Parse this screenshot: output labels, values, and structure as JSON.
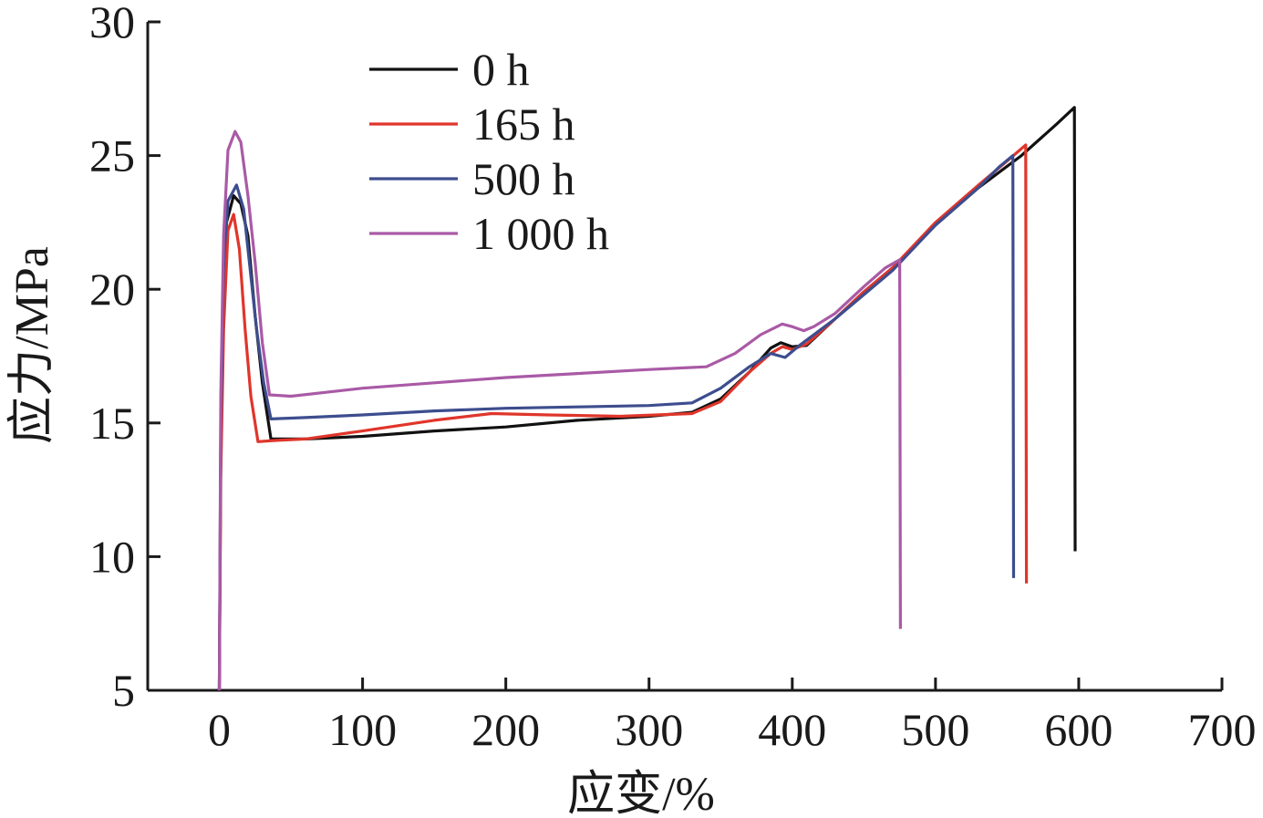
{
  "chart_data": {
    "type": "line",
    "title": "",
    "xlabel": "应变/%",
    "ylabel": "应力/MPa",
    "xlim": [
      -50,
      700
    ],
    "ylim": [
      5,
      30
    ],
    "x_ticks": [
      "0",
      "100",
      "200",
      "300",
      "400",
      "500",
      "600",
      "700"
    ],
    "y_ticks": [
      "5",
      "10",
      "15",
      "20",
      "25",
      "30"
    ],
    "grid": false,
    "legend_position": "top-left",
    "series": [
      {
        "name": "0 h",
        "color": "#111111",
        "points": [
          [
            0,
            5
          ],
          [
            1,
            14
          ],
          [
            3,
            20
          ],
          [
            5,
            22.5
          ],
          [
            10,
            23.5
          ],
          [
            15,
            23.2
          ],
          [
            20,
            22
          ],
          [
            25,
            19
          ],
          [
            30,
            16.5
          ],
          [
            36,
            14.4
          ],
          [
            60,
            14.4
          ],
          [
            100,
            14.5
          ],
          [
            150,
            14.7
          ],
          [
            200,
            14.85
          ],
          [
            250,
            15.1
          ],
          [
            300,
            15.25
          ],
          [
            330,
            15.4
          ],
          [
            350,
            15.9
          ],
          [
            370,
            16.9
          ],
          [
            385,
            17.8
          ],
          [
            392,
            18.0
          ],
          [
            400,
            17.85
          ],
          [
            410,
            17.9
          ],
          [
            430,
            18.9
          ],
          [
            450,
            19.9
          ],
          [
            470,
            20.8
          ],
          [
            500,
            22.4
          ],
          [
            530,
            23.8
          ],
          [
            560,
            25.0
          ],
          [
            585,
            26.2
          ],
          [
            597,
            26.8
          ],
          [
            597.5,
            10.2
          ]
        ]
      },
      {
        "name": "165 h",
        "color": "#e0352b",
        "points": [
          [
            0,
            5
          ],
          [
            1,
            13
          ],
          [
            3,
            18.5
          ],
          [
            6,
            22.2
          ],
          [
            10,
            22.8
          ],
          [
            14,
            21.5
          ],
          [
            18,
            18.5
          ],
          [
            22,
            16
          ],
          [
            27,
            14.3
          ],
          [
            40,
            14.35
          ],
          [
            60,
            14.4
          ],
          [
            100,
            14.7
          ],
          [
            150,
            15.1
          ],
          [
            190,
            15.35
          ],
          [
            230,
            15.3
          ],
          [
            280,
            15.25
          ],
          [
            330,
            15.35
          ],
          [
            350,
            15.8
          ],
          [
            370,
            16.9
          ],
          [
            385,
            17.6
          ],
          [
            393,
            17.85
          ],
          [
            400,
            17.75
          ],
          [
            410,
            17.95
          ],
          [
            430,
            18.9
          ],
          [
            450,
            19.9
          ],
          [
            470,
            20.8
          ],
          [
            500,
            22.5
          ],
          [
            530,
            23.9
          ],
          [
            550,
            24.8
          ],
          [
            563,
            25.4
          ],
          [
            563.5,
            9.0
          ]
        ]
      },
      {
        "name": "500 h",
        "color": "#3d4d8e",
        "points": [
          [
            0,
            5
          ],
          [
            1,
            15
          ],
          [
            3,
            21
          ],
          [
            6,
            23.3
          ],
          [
            12,
            23.9
          ],
          [
            17,
            23
          ],
          [
            21,
            21
          ],
          [
            26,
            18.5
          ],
          [
            31,
            16.5
          ],
          [
            36,
            15.15
          ],
          [
            60,
            15.2
          ],
          [
            100,
            15.3
          ],
          [
            150,
            15.45
          ],
          [
            200,
            15.55
          ],
          [
            250,
            15.6
          ],
          [
            300,
            15.65
          ],
          [
            330,
            15.75
          ],
          [
            350,
            16.3
          ],
          [
            370,
            17.1
          ],
          [
            385,
            17.6
          ],
          [
            395,
            17.45
          ],
          [
            405,
            17.9
          ],
          [
            430,
            18.9
          ],
          [
            450,
            19.8
          ],
          [
            470,
            20.7
          ],
          [
            500,
            22.4
          ],
          [
            530,
            23.8
          ],
          [
            545,
            24.6
          ],
          [
            554,
            25.0
          ],
          [
            554.5,
            9.2
          ]
        ]
      },
      {
        "name": "1 000 h",
        "color": "#a95aa6",
        "points": [
          [
            0,
            5
          ],
          [
            1,
            16
          ],
          [
            3,
            22
          ],
          [
            6,
            25.2
          ],
          [
            11,
            25.9
          ],
          [
            15,
            25.5
          ],
          [
            20,
            23.5
          ],
          [
            25,
            21
          ],
          [
            30,
            18
          ],
          [
            35,
            16.05
          ],
          [
            50,
            16.0
          ],
          [
            100,
            16.3
          ],
          [
            150,
            16.5
          ],
          [
            200,
            16.7
          ],
          [
            250,
            16.85
          ],
          [
            300,
            17.0
          ],
          [
            340,
            17.1
          ],
          [
            360,
            17.6
          ],
          [
            378,
            18.3
          ],
          [
            393,
            18.7
          ],
          [
            400,
            18.6
          ],
          [
            408,
            18.45
          ],
          [
            415,
            18.6
          ],
          [
            430,
            19.1
          ],
          [
            450,
            20.1
          ],
          [
            465,
            20.8
          ],
          [
            475,
            21.1
          ],
          [
            475.5,
            7.3
          ]
        ]
      }
    ]
  }
}
